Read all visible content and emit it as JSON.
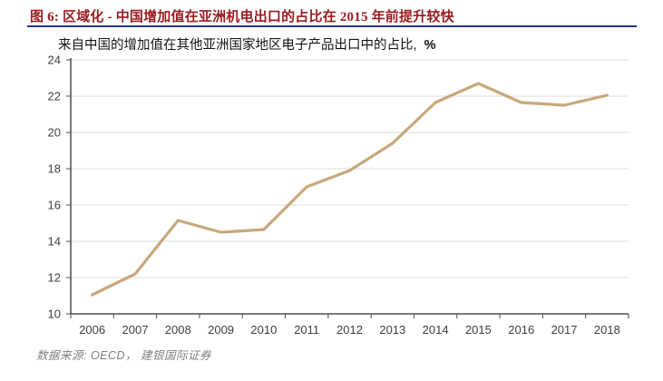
{
  "header": {
    "title": "图 6: 区域化 - 中国增加值在亚洲机电出口的占比在 2015 年前提升较快"
  },
  "subtitle": {
    "text": "来自中国的增加值在其他亚洲国家地区电子产品出口中的占比,",
    "unit": "%"
  },
  "source": {
    "text": "数据来源: OECD， 建银国际证券"
  },
  "colors": {
    "title": "#9a1b1f",
    "divider": "#24338f",
    "line": "#c9a87c",
    "grid": "#dcdcdc",
    "axis": "#4d4d4d",
    "tick_label": "#404040"
  },
  "chart_data": {
    "type": "line",
    "title": "来自中国的增加值在其他亚洲国家地区电子产品出口中的占比, %",
    "categories": [
      "2006",
      "2007",
      "2008",
      "2009",
      "2010",
      "2011",
      "2012",
      "2013",
      "2014",
      "2015",
      "2016",
      "2017",
      "2018"
    ],
    "values": [
      11.05,
      12.2,
      15.15,
      14.5,
      14.65,
      17.0,
      17.9,
      19.4,
      21.65,
      22.7,
      21.65,
      21.5,
      22.05
    ],
    "xlabel": "",
    "ylabel": "%",
    "ylim": [
      10,
      24
    ],
    "ytick_step": 2,
    "grid": "horizontal",
    "legend": "none"
  }
}
